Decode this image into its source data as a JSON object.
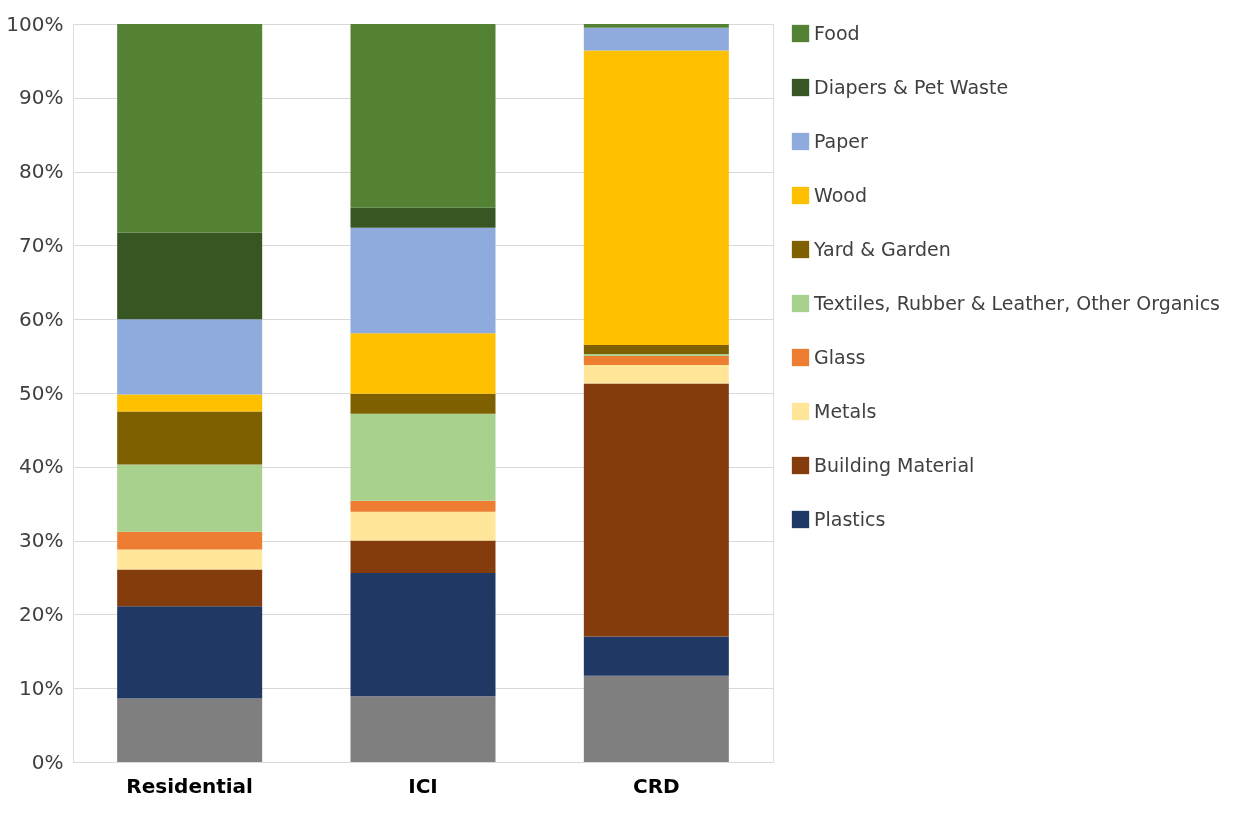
{
  "chart_data": {
    "type": "bar",
    "stacked": true,
    "categories": [
      "Residential",
      "ICI",
      "CRD"
    ],
    "series": [
      {
        "color": "#7f7f7f",
        "values": [
          8.6,
          8.9,
          11.7
        ]
      },
      {
        "name": "Plastics",
        "color": "#203864",
        "values": [
          12.5,
          16.7,
          5.3
        ]
      },
      {
        "name": "Building Material",
        "color": "#843c0c",
        "values": [
          5.0,
          4.4,
          34.3
        ]
      },
      {
        "name": "Metals",
        "color": "#ffe699",
        "values": [
          2.7,
          3.9,
          2.5
        ]
      },
      {
        "name": "Glass",
        "color": "#ed7d31",
        "values": [
          2.4,
          1.5,
          1.2
        ]
      },
      {
        "name": "Textiles, Rubber & Leather, Other Organics",
        "color": "#a9d18e",
        "values": [
          9.1,
          11.8,
          0.3
        ]
      },
      {
        "name": "Yard & Garden",
        "color": "#7f6000",
        "values": [
          7.2,
          2.7,
          1.2
        ]
      },
      {
        "name": "Wood",
        "color": "#ffc000",
        "values": [
          2.3,
          8.2,
          39.9
        ]
      },
      {
        "name": "Paper",
        "color": "#8faadc",
        "values": [
          10.2,
          14.3,
          3.1
        ]
      },
      {
        "name": "Diapers & Pet Waste",
        "color": "#375623",
        "values": [
          11.7,
          2.7,
          0
        ]
      },
      {
        "name": "Food",
        "color": "#548235",
        "values": [
          28.3,
          24.9,
          0.5
        ]
      }
    ],
    "ylim": [
      0,
      100
    ],
    "yticks": [
      {
        "value": 0,
        "label": "0%"
      },
      {
        "value": 10,
        "label": "10%"
      },
      {
        "value": 20,
        "label": "20%"
      },
      {
        "value": 30,
        "label": "30%"
      },
      {
        "value": 40,
        "label": "40%"
      },
      {
        "value": 50,
        "label": "50%"
      },
      {
        "value": 60,
        "label": "60%"
      },
      {
        "value": 70,
        "label": "70%"
      },
      {
        "value": 80,
        "label": "80%"
      },
      {
        "value": 90,
        "label": "90%"
      },
      {
        "value": 100,
        "label": "100%"
      }
    ],
    "grid": "y",
    "legend": "right"
  }
}
